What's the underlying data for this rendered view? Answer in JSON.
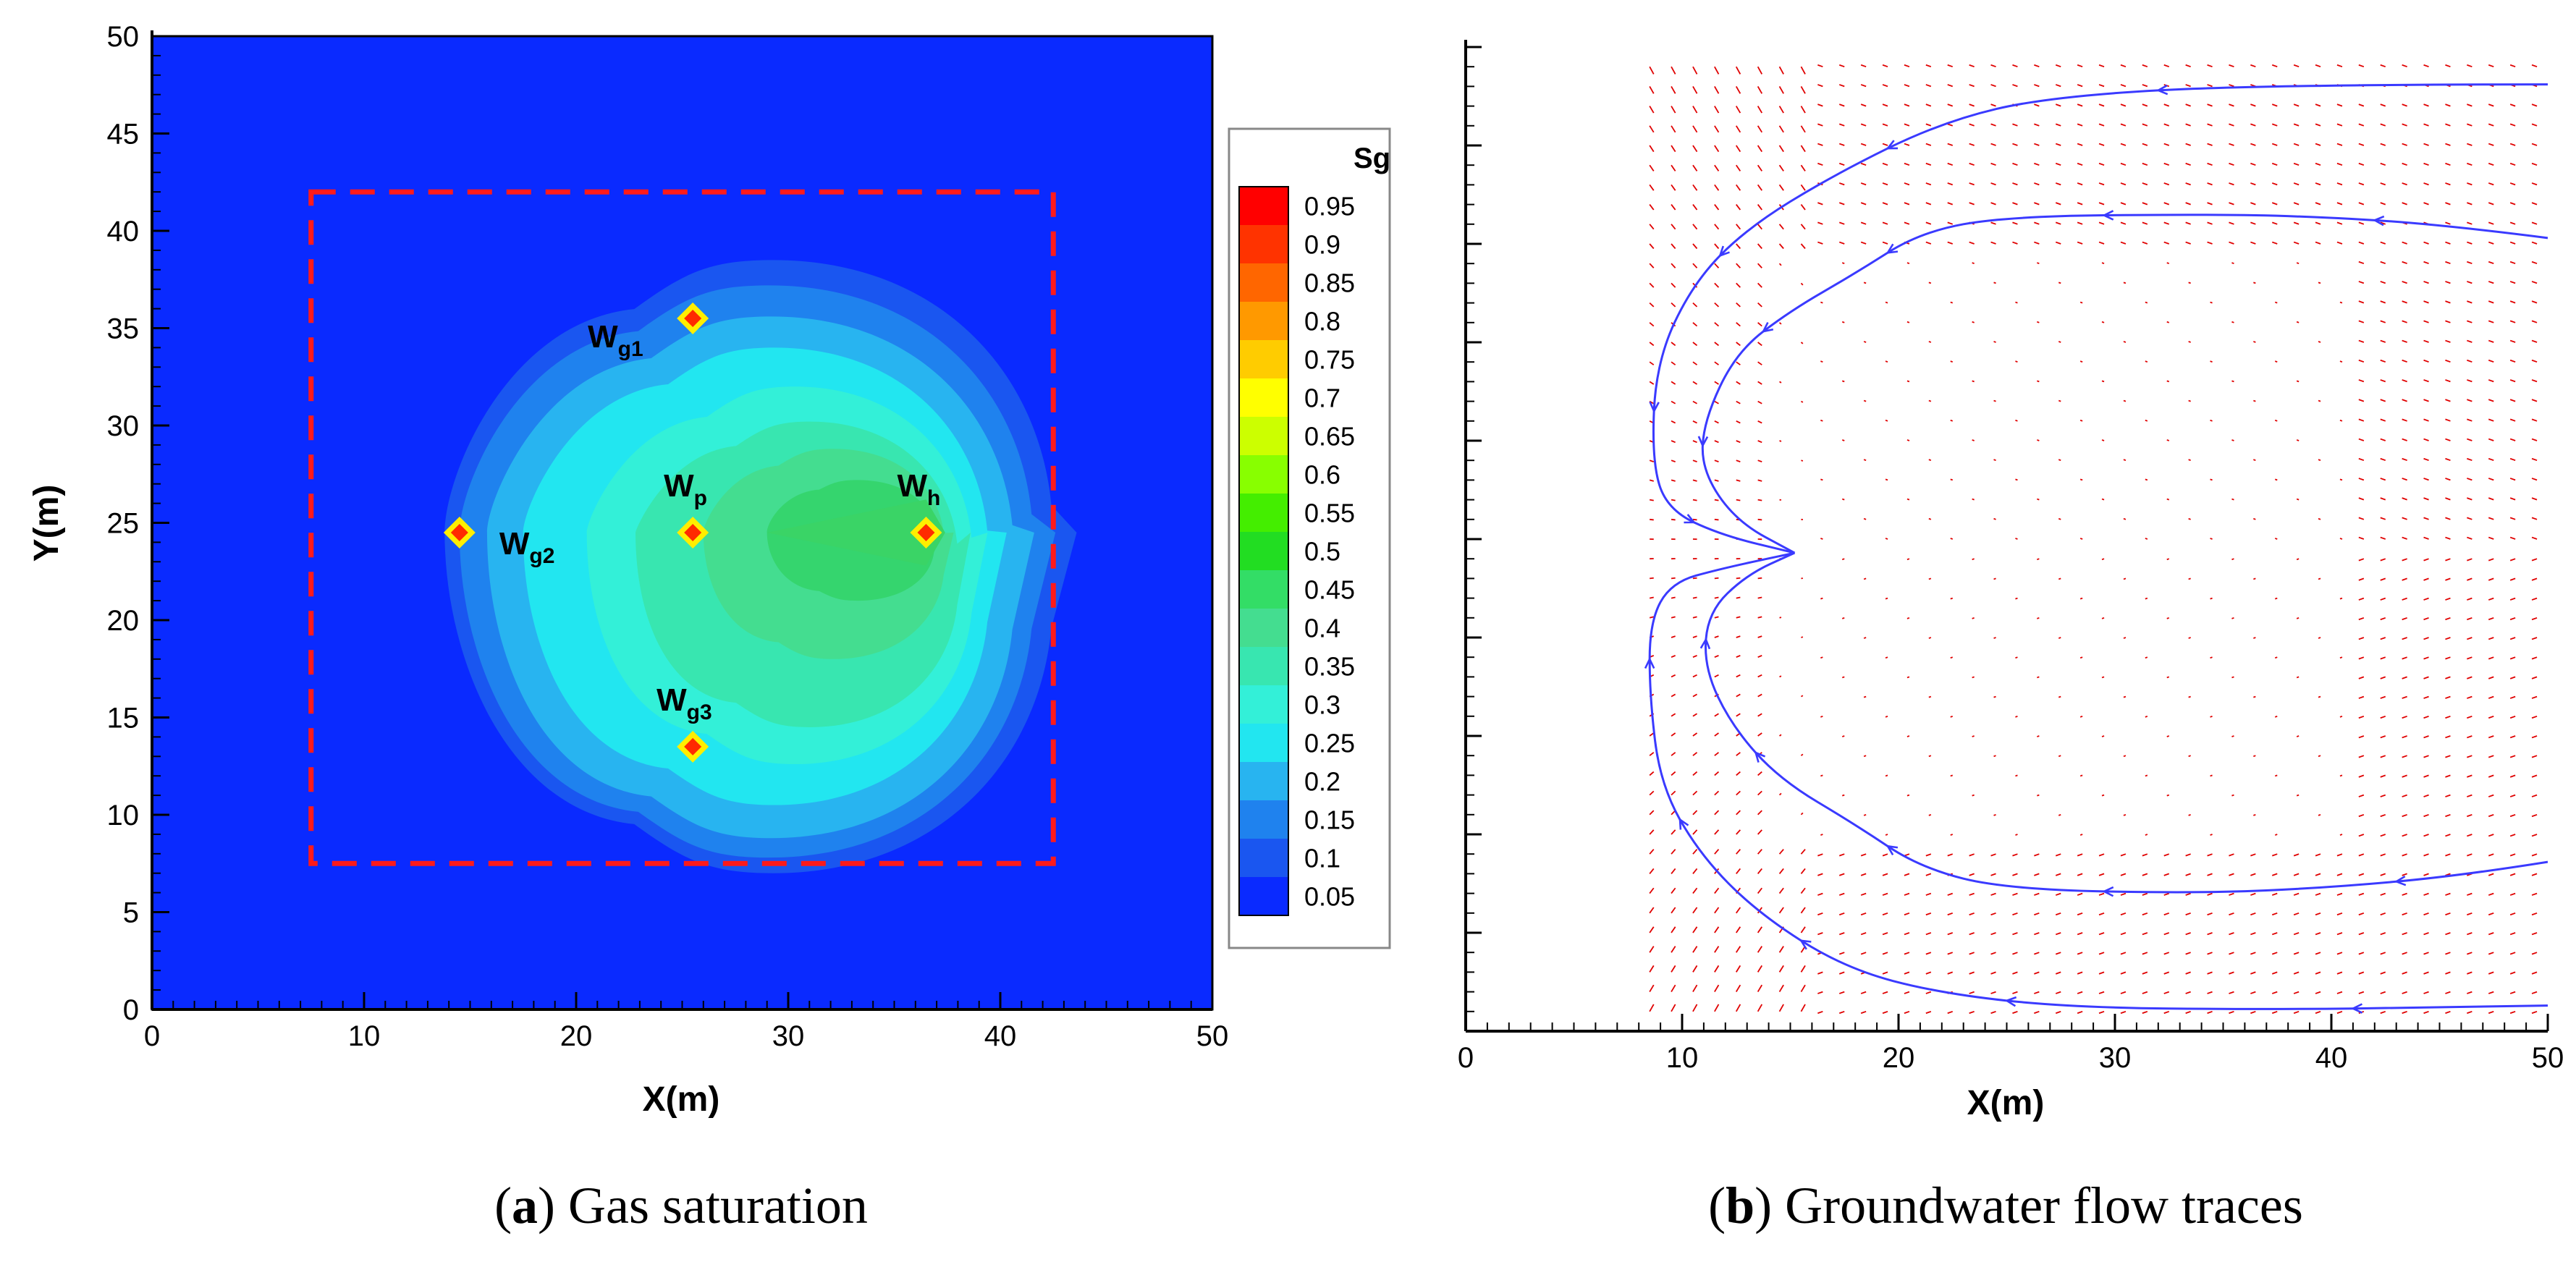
{
  "chart_data": [
    {
      "id": "a",
      "type": "contour",
      "title": "Gas saturation",
      "xlabel": "X(m)",
      "ylabel": "Y(m)",
      "xlim": [
        0,
        50
      ],
      "ylim": [
        0,
        50
      ],
      "xticks": [
        "0",
        "10",
        "20",
        "30",
        "40",
        "50"
      ],
      "yticks": [
        "0",
        "5",
        "10",
        "15",
        "20",
        "25",
        "30",
        "35",
        "40",
        "45",
        "50"
      ],
      "background_color": "#0a2aff",
      "treatment_zone": {
        "x": [
          7.5,
          42.5
        ],
        "y": [
          7.5,
          42
        ],
        "style": "dashed",
        "color": "#ff1a1a"
      },
      "wells": [
        {
          "name": "W",
          "sub": "g1",
          "x": 25.5,
          "y": 35.5
        },
        {
          "name": "W",
          "sub": "g2",
          "x": 14.5,
          "y": 24.5
        },
        {
          "name": "W",
          "sub": "p",
          "x": 25.5,
          "y": 24.5
        },
        {
          "name": "W",
          "sub": "h",
          "x": 36.5,
          "y": 24.5
        },
        {
          "name": "W",
          "sub": "g3",
          "x": 25.5,
          "y": 13.5
        }
      ],
      "contour_shells": [
        {
          "level": 0.1,
          "color": "#1a56f0",
          "x": [
            13.8,
            43.6
          ],
          "y": [
            7.0,
            38.5
          ]
        },
        {
          "level": 0.15,
          "color": "#1f82ee",
          "x": [
            14.5,
            42.6
          ],
          "y": [
            7.8,
            37.2
          ]
        },
        {
          "level": 0.2,
          "color": "#28b4f0",
          "x": [
            15.8,
            41.6
          ],
          "y": [
            8.8,
            35.6
          ]
        },
        {
          "level": 0.25,
          "color": "#22e6f0",
          "x": [
            17.5,
            40.3
          ],
          "y": [
            10.5,
            34.0
          ]
        },
        {
          "level": 0.3,
          "color": "#33f0d8",
          "x": [
            20.5,
            39.4
          ],
          "y": [
            12.6,
            32.0
          ]
        },
        {
          "level": 0.35,
          "color": "#38e6b0",
          "x": [
            22.8,
            38.6
          ],
          "y": [
            14.5,
            30.2
          ]
        },
        {
          "level": 0.4,
          "color": "#44dd90",
          "x": [
            26.0,
            37.8
          ],
          "y": [
            18.0,
            28.8
          ]
        },
        {
          "level": 0.45,
          "color": "#35d56e",
          "x": [
            29.0,
            37.2
          ],
          "y": [
            21.0,
            27.2
          ]
        }
      ],
      "colorbar": {
        "title": "Sg",
        "levels": [
          "0.95",
          "0.9",
          "0.85",
          "0.8",
          "0.75",
          "0.7",
          "0.65",
          "0.6",
          "0.55",
          "0.5",
          "0.45",
          "0.4",
          "0.35",
          "0.3",
          "0.25",
          "0.2",
          "0.15",
          "0.1",
          "0.05"
        ],
        "colors": [
          "#ff0000",
          "#ff3300",
          "#ff6600",
          "#ff9900",
          "#ffcc00",
          "#ffff00",
          "#ccff00",
          "#88ff00",
          "#44ee00",
          "#22dd22",
          "#33dd66",
          "#44dd90",
          "#38e6b0",
          "#33f0d8",
          "#22e6f0",
          "#28b4f0",
          "#1f82ee",
          "#1a56f0",
          "#0a2aff"
        ]
      },
      "caption_letter": "a",
      "caption_text": "Gas saturation"
    },
    {
      "id": "b",
      "type": "streamline",
      "title": "Groundwater flow traces",
      "xlabel": "X(m)",
      "xlim": [
        0,
        50
      ],
      "ylim": [
        0,
        50
      ],
      "xticks": [
        "0",
        "10",
        "20",
        "30",
        "40",
        "50"
      ],
      "stream_color": "#3a3aff",
      "vector_color": "#e00000",
      "streamlines": [
        [
          [
            50,
            48.1
          ],
          [
            37,
            48.1
          ],
          [
            27,
            47.5
          ],
          [
            22,
            46.2
          ],
          [
            17,
            43.5
          ],
          [
            13,
            40.8
          ],
          [
            10.5,
            38
          ],
          [
            8.8,
            34
          ],
          [
            8.6,
            29
          ],
          [
            9.3,
            26.5
          ],
          [
            11.8,
            25.2
          ],
          [
            15.2,
            24.3
          ]
        ],
        [
          [
            50,
            40.3
          ],
          [
            45,
            41.0
          ],
          [
            39,
            41.4
          ],
          [
            34,
            41.5
          ],
          [
            25,
            41.4
          ],
          [
            21,
            40.6
          ],
          [
            18,
            38.5
          ],
          [
            15,
            36.6
          ],
          [
            12.5,
            34.5
          ],
          [
            11,
            31
          ],
          [
            10.9,
            28.5
          ],
          [
            12.5,
            25.9
          ],
          [
            15.2,
            24.3
          ]
        ],
        [
          [
            50,
            8.6
          ],
          [
            46,
            7.9
          ],
          [
            40,
            7.3
          ],
          [
            34,
            7.0
          ],
          [
            25,
            7.2
          ],
          [
            21,
            8.3
          ],
          [
            18,
            10.5
          ],
          [
            14.5,
            12.8
          ],
          [
            12.3,
            15.5
          ],
          [
            11,
            18.5
          ],
          [
            11.2,
            21.3
          ],
          [
            13,
            23.2
          ],
          [
            15.2,
            24.3
          ]
        ],
        [
          [
            50,
            1.3
          ],
          [
            45,
            1.2
          ],
          [
            37,
            1.1
          ],
          [
            28,
            1.2
          ],
          [
            22,
            1.9
          ],
          [
            17.5,
            3.2
          ],
          [
            13.5,
            6
          ],
          [
            10.8,
            9
          ],
          [
            9,
            12.5
          ],
          [
            8.5,
            17
          ],
          [
            8.5,
            20.8
          ],
          [
            9.5,
            22.8
          ],
          [
            11.8,
            23.5
          ],
          [
            15.2,
            24.3
          ]
        ]
      ],
      "caption_letter": "b",
      "caption_text": "Groundwater flow traces"
    }
  ]
}
